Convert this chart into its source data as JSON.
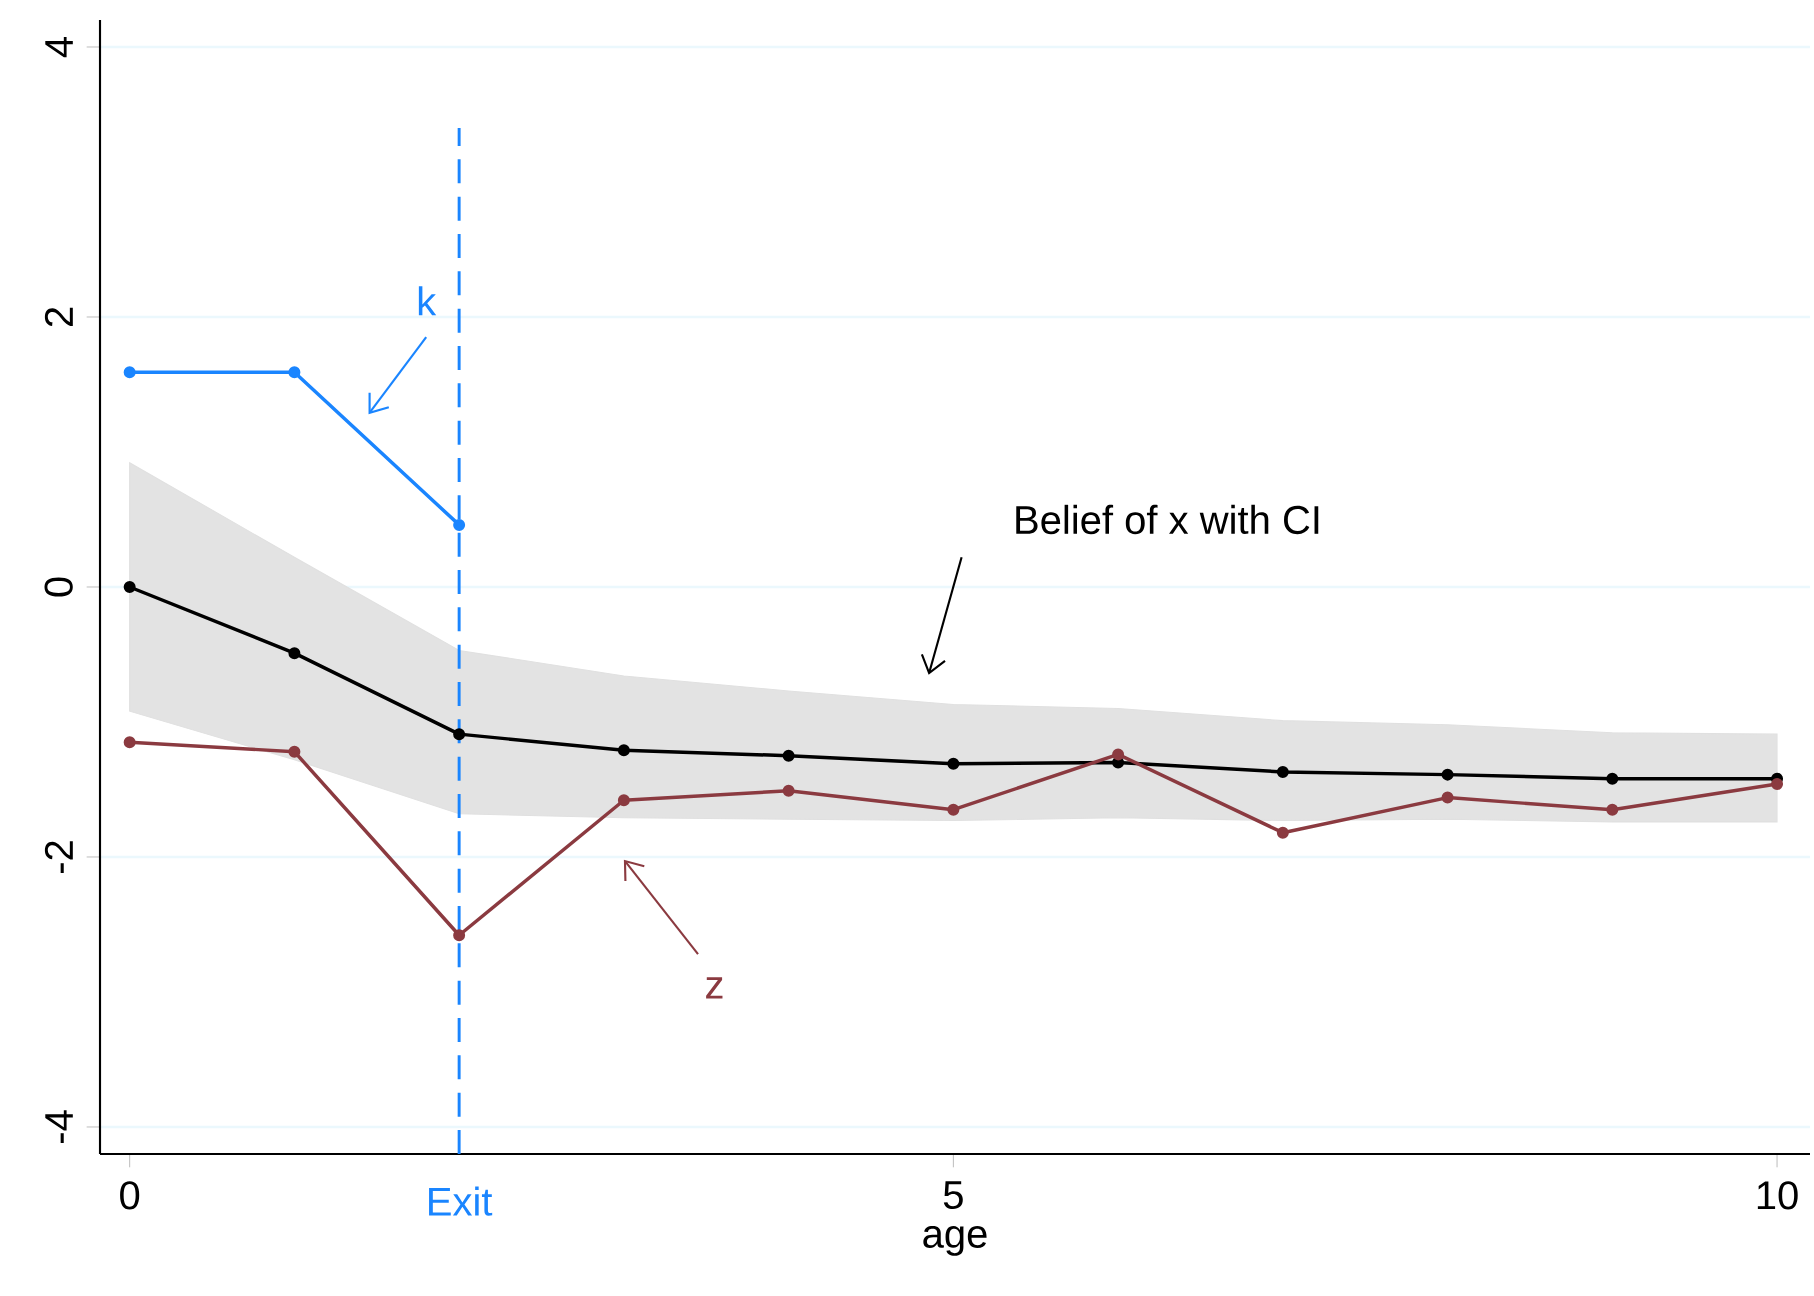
{
  "chart_data": {
    "type": "line",
    "xlabel": "age",
    "x": [
      0,
      1,
      2,
      3,
      4,
      5,
      6,
      7,
      8,
      9,
      10
    ],
    "series": [
      {
        "color": "#000000",
        "values": [
          0,
          -0.49,
          -1.09,
          -1.21,
          -1.25,
          -1.31,
          -1.3,
          -1.37,
          -1.39,
          -1.42,
          -1.42
        ],
        "lower": [
          -0.92,
          -1.28,
          -1.68,
          -1.71,
          -1.72,
          -1.73,
          -1.71,
          -1.73,
          -1.72,
          -1.74,
          -1.74
        ],
        "upper": [
          0.92,
          0.22,
          -0.47,
          -0.66,
          -0.77,
          -0.87,
          -0.9,
          -0.99,
          -1.02,
          -1.08,
          -1.09
        ]
      },
      {
        "color": "#1a85ff",
        "x": [
          0,
          1,
          2
        ],
        "values": [
          1.59,
          1.59,
          0.46
        ]
      },
      {
        "color": "#8b3a40",
        "values": [
          -1.15,
          -1.22,
          -2.58,
          -1.58,
          -1.51,
          -1.65,
          -1.24,
          -1.82,
          -1.56,
          -1.65,
          -1.46
        ]
      }
    ],
    "annotations": [
      "Belief of x with CI",
      "k",
      "z"
    ],
    "ref_lines": [
      {
        "axis": "x",
        "value": 2,
        "label": "Exit",
        "color": "#1a85ff",
        "line_style": "dashed"
      }
    ],
    "xlim": [
      -0.18,
      10.2
    ],
    "ylim": [
      -4.2,
      4.2
    ],
    "xticks": [
      0,
      5,
      10
    ],
    "yticks": [
      -4,
      -2,
      0,
      2,
      4
    ],
    "grid": "y",
    "marker": "circle",
    "line_style": "solid"
  }
}
